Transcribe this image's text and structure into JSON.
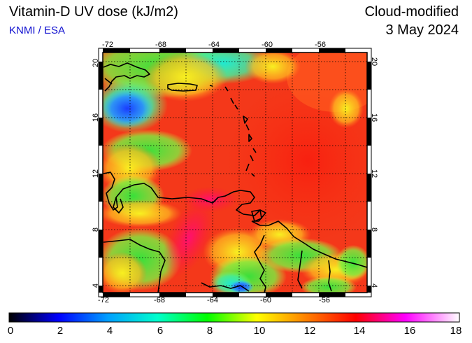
{
  "header": {
    "title": "Vitamin-D UV dose (kJ/m2)",
    "organization": "KNMI / ESA",
    "mode": "Cloud-modified",
    "date": "3 May 2024"
  },
  "map": {
    "lon_range": [
      -72,
      -52
    ],
    "lat_range": [
      3.5,
      21
    ],
    "lon_ticks": [
      "-72",
      "-68",
      "-64",
      "-60",
      "-56"
    ],
    "lat_ticks": [
      "20",
      "16",
      "12",
      "8",
      "4"
    ],
    "grid": "dotted, 2 degree spacing"
  },
  "colorbar": {
    "ticks": [
      "0",
      "2",
      "4",
      "6",
      "8",
      "10",
      "12",
      "14",
      "16",
      "18"
    ],
    "colors": [
      "#000000",
      "#0000ff",
      "#00a0ff",
      "#00ffcc",
      "#00ff00",
      "#ffff00",
      "#ff8000",
      "#ff0000",
      "#ff00ff",
      "#ffffff"
    ]
  }
}
